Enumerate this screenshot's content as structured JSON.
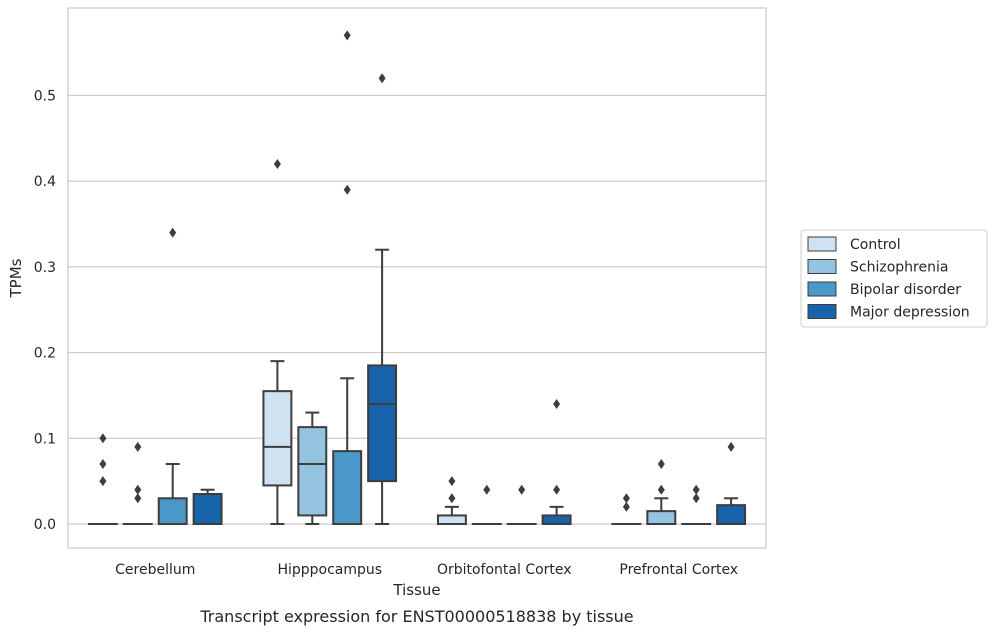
{
  "chart_data": {
    "type": "box",
    "title": "",
    "caption": "Transcript expression for ENST00000518838 by tissue",
    "xlabel": "Tissue",
    "ylabel": "TPMs",
    "ylim": [
      -0.028,
      0.602
    ],
    "yticks": [
      0.0,
      0.1,
      0.2,
      0.3,
      0.4,
      0.5
    ],
    "ytick_labels": [
      "0.0",
      "0.1",
      "0.2",
      "0.3",
      "0.4",
      "0.5"
    ],
    "grid": "horizontal",
    "legend_position": "right",
    "categories": [
      "Cerebellum",
      "Hipppocampus",
      "Orbitofontal Cortex",
      "Prefrontal Cortex"
    ],
    "series": [
      {
        "name": "Control",
        "color": "#d0e1f2",
        "boxes": [
          {
            "whislo": 0,
            "q1": 0,
            "med": 0,
            "q3": 0,
            "whishi": 0,
            "fliers": [
              0.05,
              0.07,
              0.1
            ]
          },
          {
            "whislo": 0,
            "q1": 0.045,
            "med": 0.09,
            "q3": 0.155,
            "whishi": 0.19,
            "fliers": [
              0.42
            ]
          },
          {
            "whislo": 0,
            "q1": 0,
            "med": 0,
            "q3": 0.01,
            "whishi": 0.02,
            "fliers": [
              0.03,
              0.05
            ]
          },
          {
            "whislo": 0,
            "q1": 0,
            "med": 0,
            "q3": 0,
            "whishi": 0,
            "fliers": [
              0.02,
              0.03
            ]
          }
        ]
      },
      {
        "name": "Schizophrenia",
        "color": "#94c4df",
        "boxes": [
          {
            "whislo": 0,
            "q1": 0,
            "med": 0,
            "q3": 0,
            "whishi": 0,
            "fliers": [
              0.03,
              0.04,
              0.09
            ]
          },
          {
            "whislo": 0,
            "q1": 0.01,
            "med": 0.07,
            "q3": 0.113,
            "whishi": 0.13,
            "fliers": []
          },
          {
            "whislo": 0,
            "q1": 0,
            "med": 0,
            "q3": 0,
            "whishi": 0,
            "fliers": [
              0.04
            ]
          },
          {
            "whislo": 0,
            "q1": 0,
            "med": 0,
            "q3": 0.015,
            "whishi": 0.03,
            "fliers": [
              0.04,
              0.07
            ]
          }
        ]
      },
      {
        "name": "Bipolar disorder",
        "color": "#4a98c9",
        "boxes": [
          {
            "whislo": 0,
            "q1": 0,
            "med": 0,
            "q3": 0.03,
            "whishi": 0.07,
            "fliers": [
              0.34
            ]
          },
          {
            "whislo": 0,
            "q1": 0,
            "med": 0,
            "q3": 0.085,
            "whishi": 0.17,
            "fliers": [
              0.39,
              0.57
            ]
          },
          {
            "whislo": 0,
            "q1": 0,
            "med": 0,
            "q3": 0,
            "whishi": 0,
            "fliers": [
              0.04
            ]
          },
          {
            "whislo": 0,
            "q1": 0,
            "med": 0,
            "q3": 0,
            "whishi": 0,
            "fliers": [
              0.03,
              0.04
            ]
          }
        ]
      },
      {
        "name": "Major depression",
        "color": "#1764ab",
        "boxes": [
          {
            "whislo": 0,
            "q1": 0,
            "med": 0,
            "q3": 0.035,
            "whishi": 0.04,
            "fliers": []
          },
          {
            "whislo": 0,
            "q1": 0.05,
            "med": 0.14,
            "q3": 0.185,
            "whishi": 0.32,
            "fliers": [
              0.52
            ]
          },
          {
            "whislo": 0,
            "q1": 0,
            "med": 0,
            "q3": 0.01,
            "whishi": 0.02,
            "fliers": [
              0.04,
              0.14
            ]
          },
          {
            "whislo": 0,
            "q1": 0,
            "med": 0,
            "q3": 0.022,
            "whishi": 0.03,
            "fliers": [
              0.09
            ]
          }
        ]
      }
    ]
  }
}
